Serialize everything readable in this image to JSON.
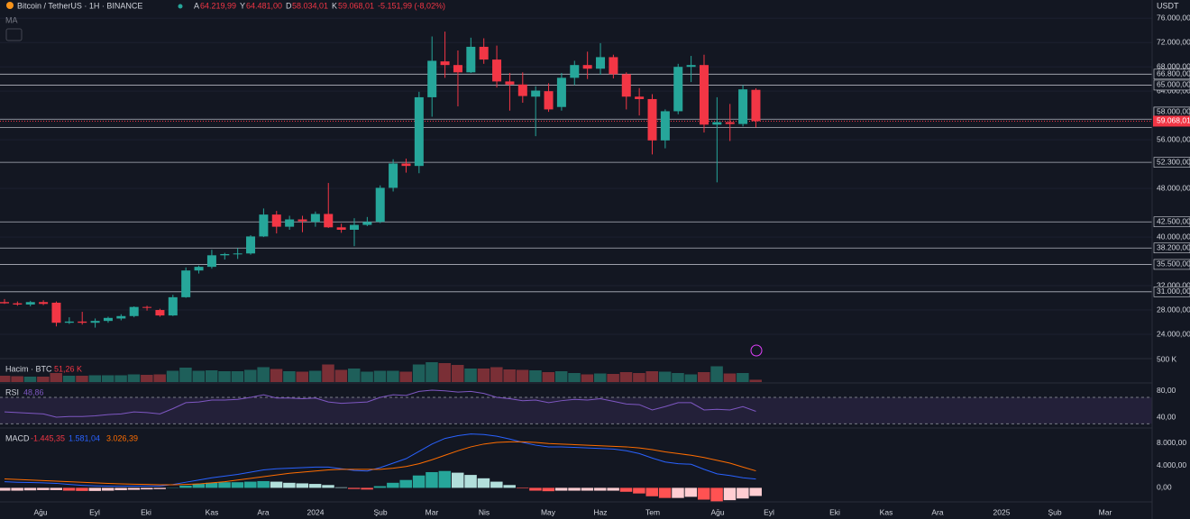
{
  "header": {
    "symbol": "Bitcoin / TetherUS · 1H · BINANCE",
    "ohlc": [
      {
        "k": "A",
        "v": "64.219,99"
      },
      {
        "k": "Y",
        "v": "64.481,00"
      },
      {
        "k": "D",
        "v": "58.034,01"
      },
      {
        "k": "K",
        "v": "59.068,01"
      }
    ],
    "change": "-5.151,99 (-8,02%)",
    "indicator": "MA",
    "currency": "USDT"
  },
  "chart_data": [
    {
      "type": "candlestick",
      "colors": {
        "up": "#26a69a",
        "down": "#f23645"
      },
      "ylim": [
        20000,
        79000
      ],
      "candles": [
        [
          29300,
          29800,
          29000,
          29100
        ],
        [
          29100,
          29400,
          28700,
          28900
        ],
        [
          28900,
          29500,
          28600,
          29300
        ],
        [
          29300,
          29600,
          28800,
          29000
        ],
        [
          29200,
          29400,
          25300,
          25900
        ],
        [
          25900,
          26800,
          25700,
          26100
        ],
        [
          26100,
          27700,
          25600,
          25900
        ],
        [
          25900,
          26600,
          25100,
          26200
        ],
        [
          26200,
          26900,
          25900,
          26700
        ],
        [
          26600,
          27300,
          26300,
          27000
        ],
        [
          27000,
          28600,
          26800,
          28500
        ],
        [
          28500,
          28700,
          27900,
          28400
        ],
        [
          28000,
          28200,
          26900,
          27100
        ],
        [
          27100,
          30500,
          27000,
          30100
        ],
        [
          30100,
          35000,
          30000,
          34500
        ],
        [
          34500,
          35300,
          34000,
          35100
        ],
        [
          35100,
          37900,
          34800,
          37000
        ],
        [
          37000,
          37400,
          36300,
          37200
        ],
        [
          37200,
          38200,
          36400,
          37300
        ],
        [
          37300,
          40300,
          37100,
          40100
        ],
        [
          40100,
          44700,
          40000,
          43700
        ],
        [
          43700,
          44300,
          40600,
          41700
        ],
        [
          41700,
          43500,
          41200,
          42900
        ],
        [
          42900,
          43500,
          40800,
          42600
        ],
        [
          42500,
          44200,
          41700,
          43800
        ],
        [
          43800,
          48900,
          41500,
          41600
        ],
        [
          41600,
          42200,
          40700,
          41200
        ],
        [
          41200,
          43100,
          38500,
          42000
        ],
        [
          42000,
          43300,
          41800,
          42500
        ],
        [
          42500,
          48500,
          42300,
          48100
        ],
        [
          48100,
          52800,
          47500,
          52100
        ],
        [
          52100,
          52900,
          50600,
          51700
        ],
        [
          51700,
          63900,
          50500,
          63000
        ],
        [
          63000,
          73000,
          59800,
          69000
        ],
        [
          68900,
          73800,
          66200,
          68300
        ],
        [
          68300,
          70700,
          61500,
          67100
        ],
        [
          67100,
          72800,
          67000,
          71300
        ],
        [
          71300,
          72700,
          68500,
          69200
        ],
        [
          69200,
          71500,
          64600,
          65600
        ],
        [
          65600,
          67000,
          60800,
          65100
        ],
        [
          65100,
          67100,
          62100,
          63200
        ],
        [
          63100,
          64800,
          56600,
          64100
        ],
        [
          64000,
          65300,
          60600,
          61000
        ],
        [
          61400,
          67000,
          60800,
          66200
        ],
        [
          66200,
          69000,
          65000,
          68300
        ],
        [
          68300,
          70500,
          66000,
          67700
        ],
        [
          67700,
          71900,
          66700,
          69600
        ],
        [
          69600,
          70000,
          66100,
          66800
        ],
        [
          66800,
          67100,
          61000,
          63100
        ],
        [
          63100,
          64500,
          60000,
          62700
        ],
        [
          62700,
          63500,
          53600,
          55900
        ],
        [
          55900,
          61000,
          54600,
          60700
        ],
        [
          60700,
          68500,
          60200,
          68000
        ],
        [
          68000,
          69800,
          65500,
          68300
        ],
        [
          68300,
          70000,
          57200,
          58500
        ],
        [
          58500,
          63000,
          49000,
          58900
        ],
        [
          58900,
          61900,
          55800,
          58600
        ],
        [
          58600,
          65000,
          58200,
          64300
        ],
        [
          64219.99,
          64481,
          58034.01,
          59068.01
        ]
      ],
      "yticks": [
        {
          "value": 76000,
          "label": "76.000,00"
        },
        {
          "value": 72000,
          "label": "72.000,00"
        },
        {
          "value": 68000,
          "label": "68.000,00"
        },
        {
          "value": 64000,
          "label": "64.000,00"
        },
        {
          "value": 56000,
          "label": "56.000,00"
        },
        {
          "value": 48000,
          "label": "48.000,00"
        },
        {
          "value": 40000,
          "label": "40.000,00"
        },
        {
          "value": 32000,
          "label": "32.000,00"
        },
        {
          "value": 28000,
          "label": "28.000,00"
        },
        {
          "value": 24000,
          "label": "24.000,00"
        }
      ],
      "levels": [
        {
          "value": 66800,
          "label": "66.800,00"
        },
        {
          "value": 65000,
          "label": "65.000,00"
        },
        {
          "value": 59400,
          "label": "59.400,00"
        },
        {
          "value": 58000,
          "label": "58.000,00"
        },
        {
          "value": 52300,
          "label": "52.300,00"
        },
        {
          "value": 42500,
          "label": "42.500,00"
        },
        {
          "value": 38200,
          "label": "38.200,00"
        },
        {
          "value": 35500,
          "label": "35.500,00"
        },
        {
          "value": 31000,
          "label": "31.000,00"
        }
      ],
      "last_price": {
        "value": 59068.01,
        "label": "59.068,01"
      },
      "time_labels": [
        "Ağu",
        "Eyl",
        "Eki",
        "Kas",
        "Ara",
        "2024",
        "Şub",
        "Mar",
        "Nis",
        "May",
        "Haz",
        "Tem",
        "Ağu",
        "Eyl",
        "Eki",
        "Kas",
        "Ara",
        "2025",
        "Şub",
        "Mar"
      ]
    },
    {
      "type": "bar",
      "name": "Hacim · BTC",
      "value_label": "51,26 K",
      "ylim": [
        0,
        520
      ],
      "yticks": [
        {
          "value": 500,
          "label": "500 K"
        }
      ],
      "values": [
        140,
        130,
        120,
        120,
        200,
        140,
        140,
        150,
        150,
        150,
        170,
        160,
        170,
        250,
        320,
        250,
        260,
        240,
        240,
        270,
        330,
        290,
        240,
        230,
        250,
        390,
        270,
        300,
        230,
        250,
        250,
        230,
        390,
        440,
        420,
        380,
        300,
        300,
        330,
        280,
        270,
        260,
        220,
        240,
        200,
        170,
        190,
        180,
        220,
        200,
        240,
        230,
        200,
        170,
        220,
        350,
        190,
        200,
        51.26
      ]
    },
    {
      "type": "line",
      "name": "RSI",
      "value_label": "48,86",
      "color": "#7e57c2",
      "ylim": [
        25,
        90.5
      ],
      "band": [
        30,
        70
      ],
      "yticks": [
        {
          "value": 80,
          "label": "80,00"
        },
        {
          "value": 40,
          "label": "40,00"
        }
      ],
      "values": [
        48,
        47,
        46,
        45,
        40,
        41,
        41,
        42,
        44,
        45,
        48,
        47,
        45,
        53,
        62,
        63,
        66,
        66,
        67,
        70,
        74,
        69,
        69,
        68,
        69,
        63,
        61,
        62,
        63,
        70,
        74,
        73,
        79,
        81,
        80,
        78,
        79,
        76,
        70,
        68,
        65,
        66,
        62,
        65,
        67,
        66,
        68,
        64,
        60,
        59,
        51,
        56,
        62,
        62,
        51,
        52,
        51,
        56,
        48.86
      ]
    },
    {
      "type": "macd",
      "name": "MACD",
      "ylim": [
        -2500,
        10500
      ],
      "yticks": [
        {
          "value": 8000,
          "label": "8.000,00"
        },
        {
          "value": 4000,
          "label": "4.000,00"
        },
        {
          "value": 0,
          "label": "0,00"
        }
      ],
      "series": [
        {
          "name": "histogram",
          "value_label": "-1.445,35",
          "color": "#f23645",
          "values": [
            -500,
            -500,
            -450,
            -400,
            -400,
            -500,
            -550,
            -550,
            -500,
            -420,
            -350,
            -280,
            -220,
            50,
            400,
            700,
            900,
            1000,
            1000,
            1100,
            1200,
            1100,
            900,
            800,
            700,
            500,
            100,
            -200,
            -300,
            300,
            900,
            1400,
            2200,
            2800,
            3000,
            2700,
            2300,
            1700,
            1100,
            500,
            -100,
            -500,
            -600,
            -500,
            -500,
            -500,
            -500,
            -500,
            -700,
            -1000,
            -1500,
            -1800,
            -1800,
            -1600,
            -2100,
            -2400,
            -2200,
            -1900,
            -1445.35
          ]
        },
        {
          "name": "macd",
          "value_label": "1.581,04",
          "color": "#2962ff",
          "values": [
            1100,
            1000,
            950,
            900,
            800,
            600,
            450,
            350,
            300,
            280,
            300,
            320,
            330,
            600,
            1000,
            1400,
            1800,
            2100,
            2400,
            2800,
            3200,
            3400,
            3500,
            3600,
            3700,
            3700,
            3400,
            3100,
            3000,
            3600,
            4400,
            5200,
            6500,
            7800,
            8800,
            9300,
            9600,
            9500,
            9200,
            8700,
            8100,
            7600,
            7300,
            7300,
            7200,
            7100,
            7000,
            6900,
            6600,
            6100,
            5300,
            4600,
            4300,
            4200,
            3300,
            2500,
            2200,
            1800,
            1581.04
          ]
        },
        {
          "name": "signal",
          "value_label": "3.026,39",
          "color": "#ff6d00",
          "values": [
            1600,
            1500,
            1400,
            1300,
            1200,
            1100,
            1000,
            900,
            800,
            700,
            650,
            600,
            550,
            550,
            600,
            700,
            900,
            1100,
            1400,
            1700,
            2000,
            2300,
            2600,
            2800,
            3000,
            3200,
            3300,
            3300,
            3300,
            3300,
            3500,
            3800,
            4300,
            5000,
            5800,
            6600,
            7300,
            7800,
            8100,
            8200,
            8200,
            8100,
            7900,
            7800,
            7700,
            7600,
            7500,
            7400,
            7300,
            7100,
            6800,
            6400,
            6100,
            5800,
            5400,
            4900,
            4400,
            3700,
            3026.39
          ]
        }
      ]
    }
  ]
}
